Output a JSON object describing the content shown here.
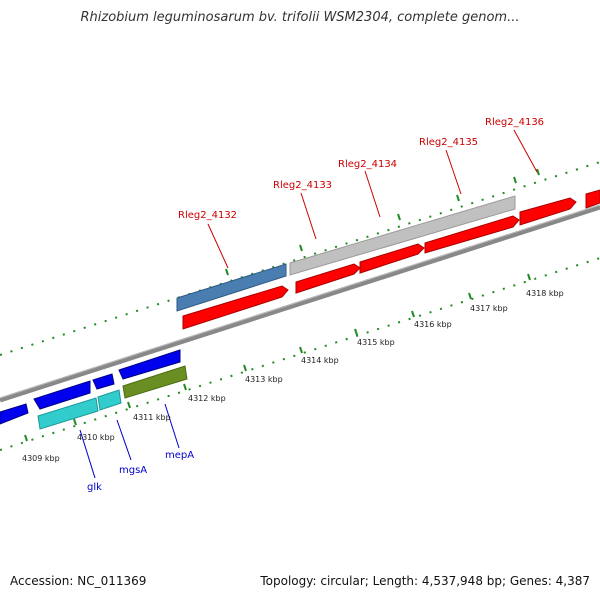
{
  "header": {
    "title": "Rhizobium leguminosarum bv. trifolii WSM2304, complete genom..."
  },
  "footer": {
    "accession": "Accession: NC_011369",
    "summary": "Topology: circular; Length: 4,537,948 bp; Genes: 4,387"
  },
  "map": {
    "kbp_labels": [
      "4309 kbp",
      "4310 kbp",
      "4311 kbp",
      "4312 kbp",
      "4313 kbp",
      "4314 kbp",
      "4315 kbp",
      "4316 kbp",
      "4317 kbp",
      "4318 kbp"
    ],
    "locus_tags": [
      "Rleg2_4132",
      "Rleg2_4133",
      "Rleg2_4134",
      "Rleg2_4135",
      "Rleg2_4136"
    ],
    "gene_names": [
      "glk",
      "mgsA",
      "mepA"
    ]
  },
  "colors": {
    "forward_cds": "#ff0000",
    "highlight_cds": "#4a7eb0",
    "grey_cds": "#c0c0c0",
    "reverse_cds": "#0000ee",
    "cyan_cds": "#33cccc",
    "olive_cds": "#6b8e23",
    "backbone": "#888888",
    "ticks": "#228b22",
    "locus_label": "#cc0000",
    "gene_label": "#0000cc"
  }
}
